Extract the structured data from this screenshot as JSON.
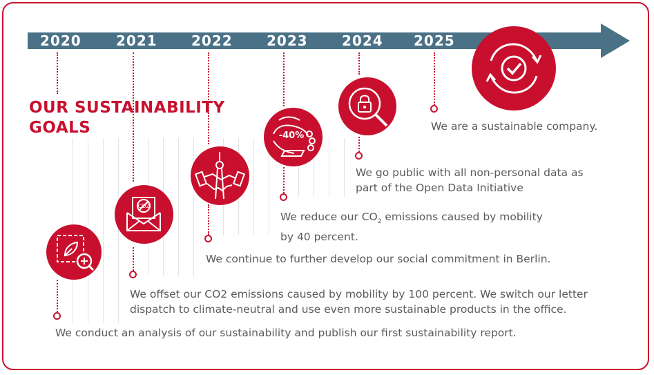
{
  "title_line1": "OUR SUSTAINABILITY",
  "title_line2": "GOALS",
  "years": [
    "2020",
    "2021",
    "2022",
    "2023",
    "2024",
    "2025"
  ],
  "goals": {
    "y2020": "We conduct an analysis of our sustainability and publish our first sustainability report.",
    "y2021_line1": "We offset our CO2 emissions caused by mobility by 100 percent. We switch our letter",
    "y2021_line2": "dispatch to climate-neutral and use even more sustainable products in the office.",
    "y2022": "We continue to further develop our social commitment in Berlin.",
    "y2023_pre": "We reduce our CO",
    "y2023_sub": "2",
    "y2023_post": " emissions caused by mobility",
    "y2023_line2": "by 40 percent.",
    "y2024_line1": "We go public with all non-personal data as",
    "y2024_line2": "part of the Open Data Initiative",
    "y2025": "We are a sustainable company."
  },
  "icon_text": {
    "minus40": "-40%",
    "co2": "CO2"
  },
  "colors": {
    "accent": "#c8102e",
    "arrow": "#4a7186",
    "text": "#5b5b5b"
  }
}
